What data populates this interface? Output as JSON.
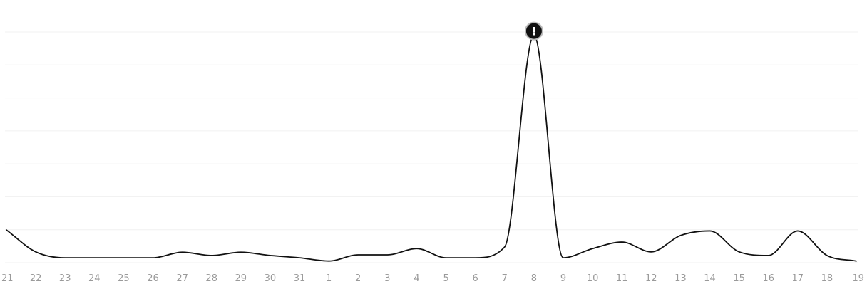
{
  "chart_data": {
    "type": "line",
    "title": "",
    "xlabel": "",
    "ylabel": "",
    "categories": [
      "21",
      "22",
      "23",
      "24",
      "25",
      "26",
      "27",
      "28",
      "29",
      "30",
      "31",
      "1",
      "2",
      "3",
      "4",
      "5",
      "6",
      "7",
      "8",
      "9",
      "10",
      "11",
      "12",
      "13",
      "14",
      "15",
      "16",
      "17",
      "18",
      "19"
    ],
    "series": [
      {
        "values": [
          9.5,
          2.8,
          1,
          1,
          1,
          1,
          2.7,
          1.7,
          2.7,
          1.7,
          1,
          0,
          1.9,
          1.9,
          3.8,
          1,
          1,
          4.3,
          69,
          1,
          3.8,
          5.8,
          2.8,
          7.8,
          9.2,
          2.8,
          1.7,
          9.2,
          1.7,
          0
        ],
        "color": "#111111"
      }
    ],
    "ylim": [
      -0.5,
      70
    ],
    "grid": true,
    "legend": "none",
    "annotations": [
      {
        "category": "8",
        "marker": "alert-icon",
        "glyph": "!"
      }
    ]
  }
}
